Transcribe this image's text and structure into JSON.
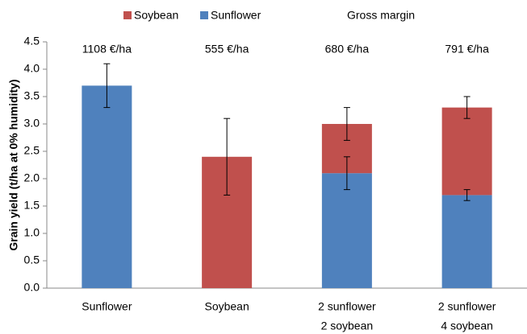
{
  "chart_data": {
    "type": "bar",
    "stacked": true,
    "y_label": "Grain yield (t/ha at 0% humidity)",
    "categories": [
      [
        "Sunflower"
      ],
      [
        "Soybean"
      ],
      [
        "2 sunflower",
        "2 soybean"
      ],
      [
        "2 sunflower",
        "4 soybean"
      ]
    ],
    "series": [
      {
        "name": "Sunflower",
        "color": "#4f81bd",
        "values": [
          3.7,
          null,
          2.1,
          1.7
        ],
        "errors": [
          0.4,
          null,
          0.3,
          0.1
        ]
      },
      {
        "name": "Soybean",
        "color": "#c0504d",
        "values": [
          null,
          2.4,
          0.9,
          1.6
        ],
        "errors": [
          null,
          0.7,
          0.3,
          0.2
        ]
      }
    ],
    "legend_order": [
      1,
      0
    ],
    "gross_margin": {
      "title": "Gross margin",
      "labels": [
        "1108 €/ha",
        "555 €/ha",
        "680 €/ha",
        "791 €/ha"
      ]
    },
    "ylim": [
      0,
      4.5
    ],
    "yticks": [
      {
        "value": 0,
        "label": "0.0"
      },
      0.5,
      {
        "value": 1,
        "label": "1.0"
      },
      1.5,
      {
        "value": 2,
        "label": "2.0"
      },
      2.5,
      {
        "value": 3,
        "label": "3.0"
      },
      3.5,
      {
        "value": 4,
        "label": "4.0"
      },
      4.5
    ]
  }
}
